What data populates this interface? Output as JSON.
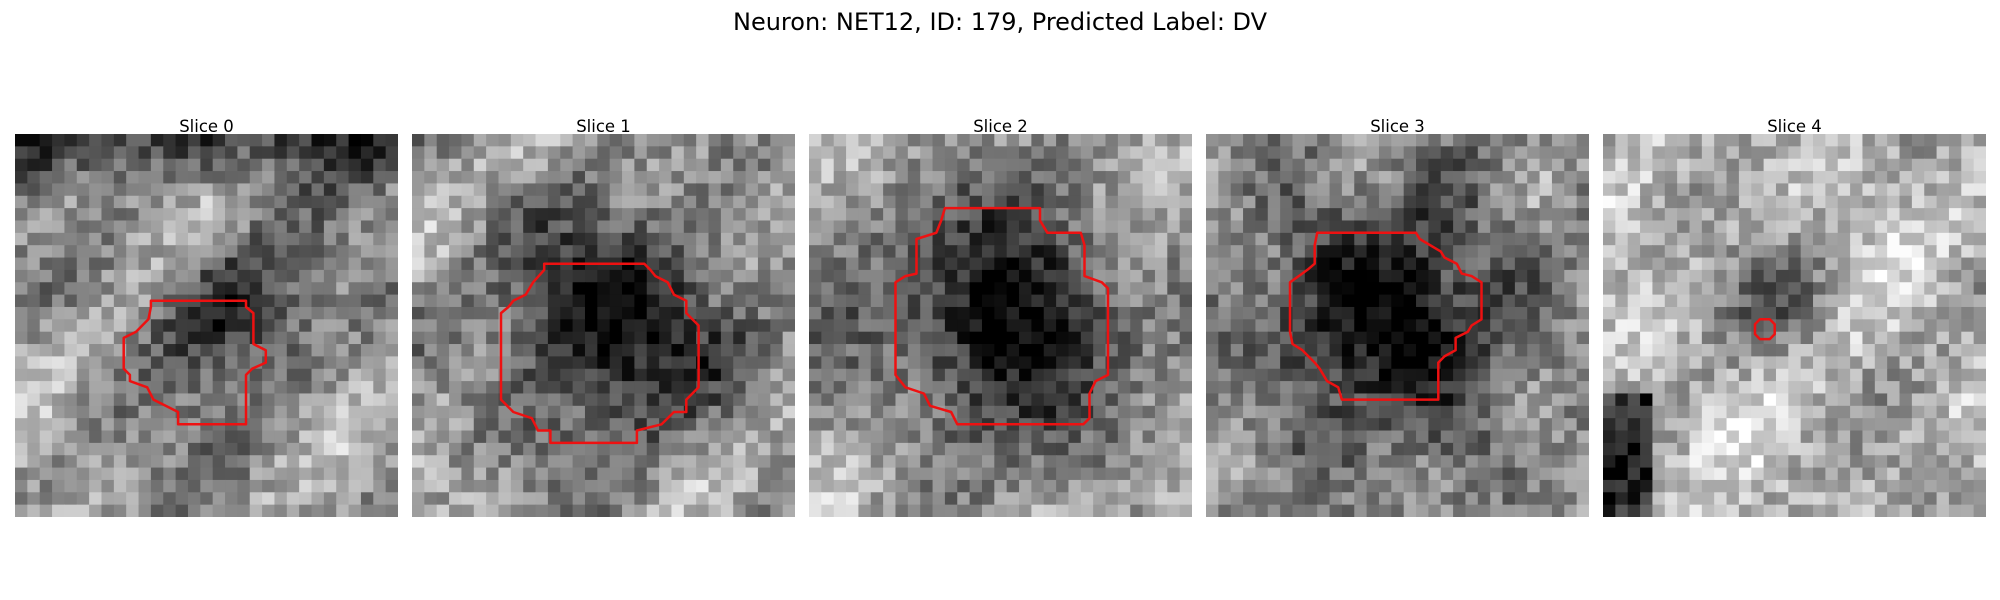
{
  "figure": {
    "title": "Neuron: NET12, ID: 179, Predicted Label: DV"
  },
  "panels": [
    {
      "title": "Slice 0",
      "seed": 11,
      "blob": 0.55,
      "bg": 0.58
    },
    {
      "title": "Slice 1",
      "seed": 23,
      "blob": 0.8,
      "bg": 0.62
    },
    {
      "title": "Slice 2",
      "seed": 37,
      "blob": 0.85,
      "bg": 0.66
    },
    {
      "title": "Slice 3",
      "seed": 51,
      "blob": 0.75,
      "bg": 0.55
    },
    {
      "title": "Slice 4",
      "seed": 67,
      "blob": 0.35,
      "bg": 0.7
    }
  ],
  "colors": {
    "contour": "#ee1111",
    "background": "#ffffff"
  }
}
